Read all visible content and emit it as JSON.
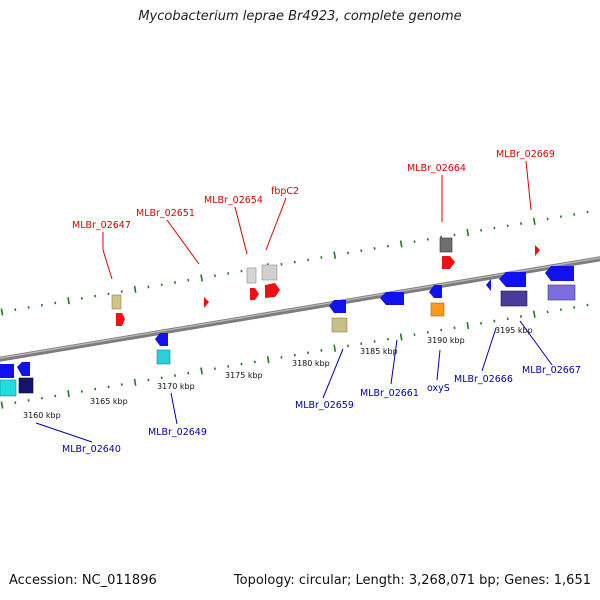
{
  "title": "Mycobacterium leprae Br4923, complete genome",
  "footer": {
    "accession": "Accession: NC_011896",
    "topology": "Topology: circular; Length: 3,268,071 bp; Genes: 1,651"
  },
  "colors": {
    "forward_label": "#dd0000",
    "reverse_label": "#0000aa",
    "backbone": "#8a8a8a",
    "ticks": "#1f7a1f"
  },
  "scale_labels": [
    "3160 kbp",
    "3165 kbp",
    "3170 kbp",
    "3175 kbp",
    "3180 kbp",
    "3185 kbp",
    "3190 kbp",
    "3195 kbp"
  ],
  "forward_genes": [
    "MLBr_02647",
    "MLBr_02651",
    "MLBr_02654",
    "fbpC2",
    "MLBr_02664",
    "MLBr_02669"
  ],
  "reverse_genes": [
    "MLBr_02640",
    "MLBr_02649",
    "MLBr_02659",
    "MLBr_02661",
    "oxyS",
    "MLBr_02666",
    "MLBr_02667"
  ]
}
